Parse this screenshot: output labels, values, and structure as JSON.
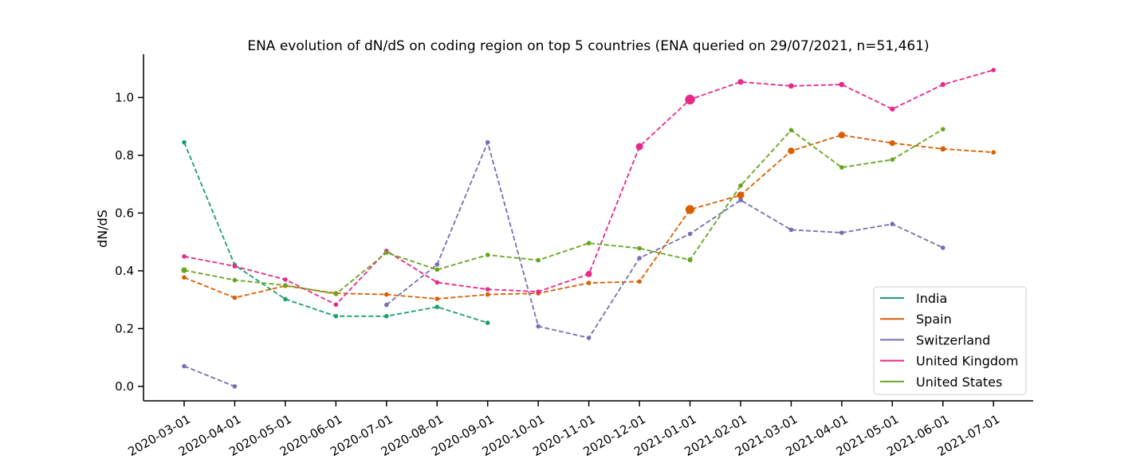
{
  "chart_data": {
    "type": "line",
    "title": "ENA evolution of dN/dS on coding region on top 5 countries (ENA queried on 29/07/2021, n=51,461)",
    "xlabel": "",
    "ylabel": "dN/dS",
    "categories": [
      "2020-03-01",
      "2020-04-01",
      "2020-05-01",
      "2020-06-01",
      "2020-07-01",
      "2020-08-01",
      "2020-09-01",
      "2020-10-01",
      "2020-11-01",
      "2020-12-01",
      "2021-01-01",
      "2021-02-01",
      "2021-03-01",
      "2021-04-01",
      "2021-05-01",
      "2021-06-01",
      "2021-07-01"
    ],
    "yticks": [
      "0.0",
      "0.2",
      "0.4",
      "0.6",
      "0.8",
      "1.0"
    ],
    "ylim": [
      -0.05,
      1.15
    ],
    "line_style": "dashed",
    "grid": false,
    "legend_position": "lower-right",
    "series": [
      {
        "name": "India",
        "color": "#1b9e77",
        "values": [
          0.845,
          0.42,
          0.302,
          0.243,
          0.243,
          0.275,
          0.22,
          null,
          null,
          null,
          null,
          null,
          null,
          null,
          null,
          null,
          null
        ],
        "sizes": [
          1,
          1,
          1,
          1,
          1,
          1,
          1,
          null,
          null,
          null,
          null,
          null,
          null,
          null,
          null,
          null,
          null
        ]
      },
      {
        "name": "Spain",
        "color": "#d95f02",
        "values": [
          0.377,
          0.307,
          0.348,
          0.322,
          0.318,
          0.303,
          0.318,
          0.322,
          0.358,
          0.363,
          0.612,
          0.662,
          0.815,
          0.87,
          0.842,
          0.822,
          0.81
        ],
        "sizes": [
          1,
          1,
          1,
          1,
          1,
          1,
          1,
          1,
          1,
          1,
          2,
          1.6,
          1.5,
          1.5,
          1.3,
          1.2,
          1
        ]
      },
      {
        "name": "Switzerland",
        "color": "#7570b3",
        "values": [
          0.07,
          0.0,
          null,
          null,
          0.282,
          0.422,
          0.845,
          0.208,
          0.168,
          0.444,
          0.528,
          0.645,
          0.542,
          0.532,
          0.562,
          0.48,
          null
        ],
        "sizes": [
          1,
          1,
          null,
          null,
          1,
          1,
          1,
          1,
          1,
          1,
          1,
          1,
          1,
          1,
          1,
          1,
          null
        ]
      },
      {
        "name": "United Kingdom",
        "color": "#e7298a",
        "values": [
          0.45,
          0.416,
          0.37,
          0.283,
          0.469,
          0.36,
          0.336,
          0.328,
          0.389,
          0.83,
          0.993,
          1.054,
          1.04,
          1.045,
          0.96,
          1.045,
          1.095
        ],
        "sizes": [
          1,
          1,
          1,
          1,
          1,
          1,
          1,
          1,
          1.4,
          1.6,
          2.2,
          1.3,
          1.2,
          1.2,
          1.1,
          1.1,
          1
        ]
      },
      {
        "name": "United States",
        "color": "#66a61e",
        "values": [
          0.402,
          0.368,
          0.35,
          0.32,
          0.463,
          0.404,
          0.455,
          0.437,
          0.496,
          0.478,
          0.438,
          0.695,
          0.887,
          0.758,
          0.785,
          0.89,
          null
        ],
        "sizes": [
          1.3,
          1,
          1,
          1,
          1,
          1,
          1,
          1,
          1,
          1,
          1.1,
          1,
          1,
          1,
          1,
          1,
          null
        ]
      }
    ]
  }
}
